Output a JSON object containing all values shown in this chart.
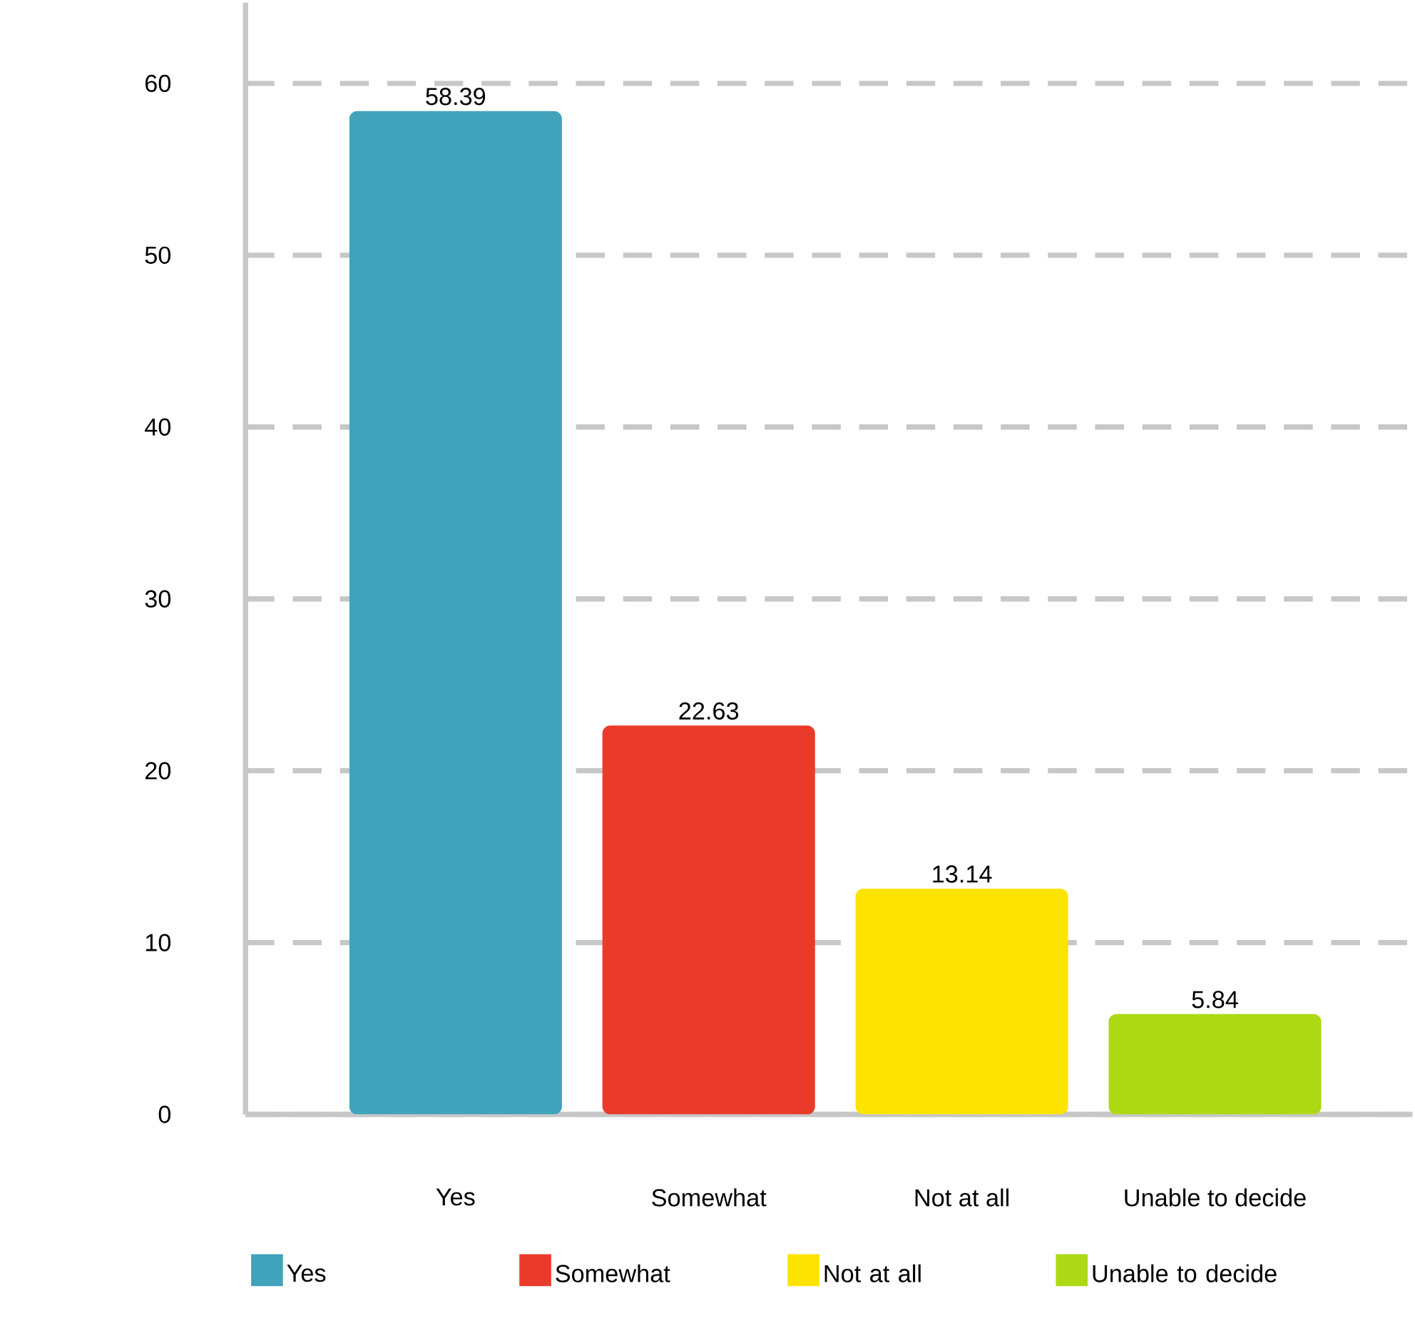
{
  "chart_data": {
    "type": "bar",
    "categories": [
      "Yes",
      "Somewhat",
      "Not at all",
      "Unable to decide"
    ],
    "series": [
      {
        "name": "Yes",
        "color": "#40a3bb",
        "values": [
          58.39,
          null,
          null,
          null
        ]
      },
      {
        "name": "Somewhat",
        "color": "#ea3a2a",
        "values": [
          null,
          22.63,
          null,
          null
        ]
      },
      {
        "name": "Not at all",
        "color": "#fde300",
        "values": [
          null,
          null,
          13.14,
          null
        ]
      },
      {
        "name": "Unable to decide",
        "color": "#acd914",
        "values": [
          null,
          null,
          null,
          5.84
        ]
      }
    ],
    "ylim": [
      0,
      64.7
    ],
    "yticks": [
      0,
      10,
      20,
      30,
      40,
      50,
      60
    ],
    "grid": "y",
    "data_labels": true,
    "legend": "bottom"
  }
}
